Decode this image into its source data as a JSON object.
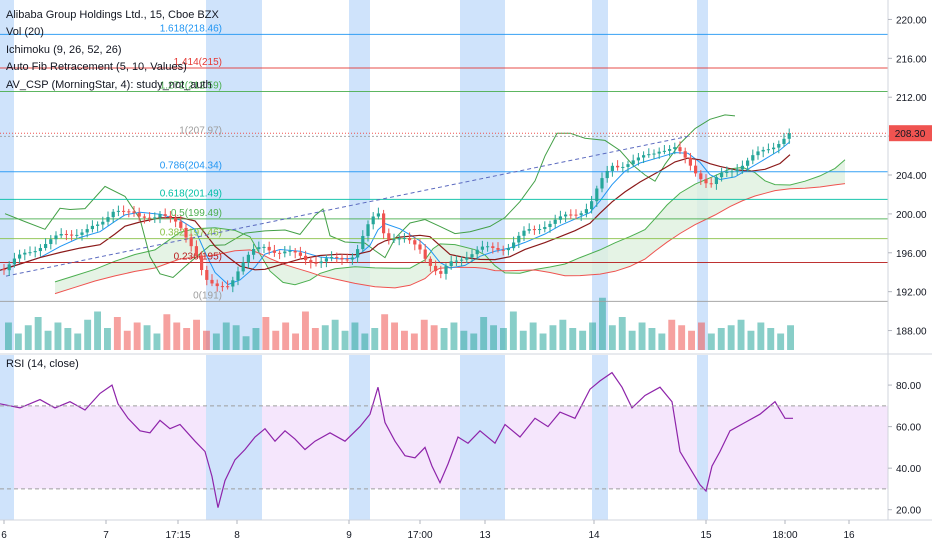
{
  "legend": {
    "symbol": "Alibaba Group Holdings Ltd., 15, Cboe BZX",
    "vol": "Vol (20)",
    "ichimoku": "Ichimoku (9, 26, 52, 26)",
    "fib": "Auto Fib Retracement (5, 10, Values)",
    "csp": "AV_CSP (MorningStar, 4): study_not_auth"
  },
  "rsi_legend": "RSI (14, close)",
  "colors": {
    "up": "#26a69a",
    "down": "#ef5350",
    "session_bg": "#cfe3fb",
    "rsi_line": "#8e24aa",
    "rsi_band": "#f3e2fb",
    "price_tag": "#ef5350",
    "kumo": "#dff0df"
  },
  "chart_data": [
    {
      "type": "line",
      "title": "Alibaba Group Holdings Ltd., 15, Cboe BZX",
      "ylim": [
        186,
        222
      ],
      "y_ticks": [
        "220.00",
        "216.00",
        "212.00",
        "208.00",
        "204.00",
        "200.00",
        "196.00",
        "192.00",
        "188.00"
      ],
      "y_tick_values": [
        220,
        216,
        212,
        208,
        204,
        200,
        196,
        192,
        188
      ],
      "x_ticks": [
        "6",
        "7",
        "17:15",
        "8",
        "9",
        "17:00",
        "13",
        "14",
        "15",
        "18:00",
        "16"
      ],
      "last_price": "208.30",
      "last_price_value": 208.3,
      "fib_levels": [
        {
          "ratio": "1.618",
          "label": "1.618(218.46)",
          "price": 218.46,
          "color": "#2196f3"
        },
        {
          "ratio": "1.414",
          "label": "1.414(215)",
          "price": 215,
          "color": "#e53935"
        },
        {
          "ratio": "1.272",
          "label": "1.272(212.59)",
          "price": 212.59,
          "color": "#4caf50"
        },
        {
          "ratio": "1",
          "label": "1(207.97)",
          "price": 207.97,
          "color": "#9e9e9e"
        },
        {
          "ratio": "0.786",
          "label": "0.786(204.34)",
          "price": 204.34,
          "color": "#2196f3"
        },
        {
          "ratio": "0.618",
          "label": "0.618(201.49)",
          "price": 201.49,
          "color": "#00bfa5"
        },
        {
          "ratio": "0.5",
          "label": "0.5(199.49)",
          "price": 199.49,
          "color": "#4caf50"
        },
        {
          "ratio": "0.382",
          "label": "0.382(197.46)",
          "price": 197.46,
          "color": "#8bc34a"
        },
        {
          "ratio": "0.236",
          "label": "0.236(195)",
          "price": 195,
          "color": "#b71c1c"
        },
        {
          "ratio": "0",
          "label": "0(191)",
          "price": 191,
          "color": "#9e9e9e"
        }
      ],
      "price_path": [
        [
          0,
          194.2
        ],
        [
          20,
          195.5
        ],
        [
          40,
          196.8
        ],
        [
          60,
          197.6
        ],
        [
          80,
          198.3
        ],
        [
          100,
          198.6
        ],
        [
          115,
          200.8
        ],
        [
          125,
          200.3
        ],
        [
          140,
          199.4
        ],
        [
          160,
          200.2
        ],
        [
          180,
          198.5
        ],
        [
          195,
          196.5
        ],
        [
          205,
          193.2
        ],
        [
          215,
          192.2
        ],
        [
          228,
          192.8
        ],
        [
          240,
          194.6
        ],
        [
          255,
          196.2
        ],
        [
          265,
          196.8
        ],
        [
          280,
          196.0
        ],
        [
          300,
          195.7
        ],
        [
          320,
          195.0
        ],
        [
          340,
          195.4
        ],
        [
          355,
          195.9
        ],
        [
          370,
          199.0
        ],
        [
          378,
          200.2
        ],
        [
          385,
          197.8
        ],
        [
          400,
          197.4
        ],
        [
          420,
          196.5
        ],
        [
          430,
          195.0
        ],
        [
          440,
          193.5
        ],
        [
          450,
          194.8
        ],
        [
          465,
          195.8
        ],
        [
          480,
          196.3
        ],
        [
          495,
          196.4
        ],
        [
          510,
          196.8
        ],
        [
          525,
          198.0
        ],
        [
          545,
          199.0
        ],
        [
          560,
          199.4
        ],
        [
          575,
          200.0
        ],
        [
          590,
          201.0
        ],
        [
          600,
          203.0
        ],
        [
          612,
          205.0
        ],
        [
          625,
          205.2
        ],
        [
          640,
          205.5
        ],
        [
          660,
          206.8
        ],
        [
          675,
          206.6
        ],
        [
          688,
          205.3
        ],
        [
          700,
          204.0
        ],
        [
          710,
          202.8
        ],
        [
          720,
          203.8
        ],
        [
          735,
          204.8
        ],
        [
          750,
          205.6
        ],
        [
          765,
          206.5
        ],
        [
          780,
          207.6
        ],
        [
          790,
          208.2
        ]
      ],
      "volume": [
        0.5,
        0.3,
        0.45,
        0.6,
        0.35,
        0.5,
        0.4,
        0.3,
        0.55,
        0.7,
        0.4,
        0.6,
        0.35,
        0.5,
        0.45,
        0.3,
        0.65,
        0.5,
        0.4,
        0.55,
        0.35,
        0.3,
        0.5,
        0.45,
        0.25,
        0.4,
        0.6,
        0.35,
        0.5,
        0.3,
        0.7,
        0.4,
        0.45,
        0.55,
        0.35,
        0.5,
        0.3,
        0.4,
        0.65,
        0.5,
        0.35,
        0.3,
        0.55,
        0.45,
        0.4,
        0.5,
        0.35,
        0.3,
        0.6,
        0.45,
        0.4,
        0.7,
        0.35,
        0.5,
        0.3,
        0.45,
        0.55,
        0.4,
        0.35,
        0.5,
        0.95,
        0.45,
        0.6,
        0.35,
        0.5,
        0.4,
        0.3,
        0.55,
        0.45,
        0.35,
        0.5,
        0.3,
        0.4,
        0.45,
        0.55,
        0.35,
        0.5,
        0.4,
        0.3,
        0.45
      ],
      "sessions": [
        [
          0,
          14
        ],
        [
          206,
          262
        ],
        [
          349,
          370
        ],
        [
          460,
          505
        ],
        [
          592,
          608
        ],
        [
          697,
          708
        ]
      ]
    },
    {
      "type": "line",
      "title": "RSI (14, close)",
      "ylim": [
        16,
        94
      ],
      "y_ticks": [
        "80.00",
        "60.00",
        "40.00",
        "20.00"
      ],
      "y_tick_values": [
        80,
        60,
        40,
        20
      ],
      "band": [
        30,
        70
      ],
      "values": [
        [
          0,
          71
        ],
        [
          20,
          69
        ],
        [
          40,
          73
        ],
        [
          55,
          69
        ],
        [
          70,
          72
        ],
        [
          85,
          68
        ],
        [
          100,
          76
        ],
        [
          112,
          80
        ],
        [
          118,
          71
        ],
        [
          128,
          64
        ],
        [
          140,
          58
        ],
        [
          150,
          57
        ],
        [
          160,
          63
        ],
        [
          170,
          59
        ],
        [
          180,
          61
        ],
        [
          195,
          53
        ],
        [
          205,
          48
        ],
        [
          212,
          36
        ],
        [
          218,
          21
        ],
        [
          225,
          34
        ],
        [
          235,
          44
        ],
        [
          245,
          49
        ],
        [
          255,
          55
        ],
        [
          265,
          59
        ],
        [
          275,
          53
        ],
        [
          285,
          58
        ],
        [
          295,
          54
        ],
        [
          305,
          49
        ],
        [
          315,
          53
        ],
        [
          330,
          57
        ],
        [
          345,
          53
        ],
        [
          360,
          60
        ],
        [
          370,
          66
        ],
        [
          378,
          79
        ],
        [
          385,
          62
        ],
        [
          395,
          53
        ],
        [
          405,
          46
        ],
        [
          415,
          45
        ],
        [
          425,
          50
        ],
        [
          432,
          41
        ],
        [
          440,
          33
        ],
        [
          448,
          42
        ],
        [
          458,
          55
        ],
        [
          468,
          52
        ],
        [
          480,
          58
        ],
        [
          495,
          52
        ],
        [
          505,
          61
        ],
        [
          520,
          55
        ],
        [
          535,
          64
        ],
        [
          548,
          60
        ],
        [
          560,
          67
        ],
        [
          575,
          64
        ],
        [
          590,
          78
        ],
        [
          600,
          82
        ],
        [
          612,
          86
        ],
        [
          622,
          79
        ],
        [
          632,
          69
        ],
        [
          645,
          75
        ],
        [
          660,
          79
        ],
        [
          672,
          72
        ],
        [
          680,
          48
        ],
        [
          690,
          40
        ],
        [
          700,
          32
        ],
        [
          706,
          29
        ],
        [
          712,
          41
        ],
        [
          720,
          48
        ],
        [
          730,
          58
        ],
        [
          745,
          62
        ],
        [
          760,
          66
        ],
        [
          775,
          72
        ],
        [
          785,
          64
        ],
        [
          793,
          64
        ]
      ]
    }
  ]
}
